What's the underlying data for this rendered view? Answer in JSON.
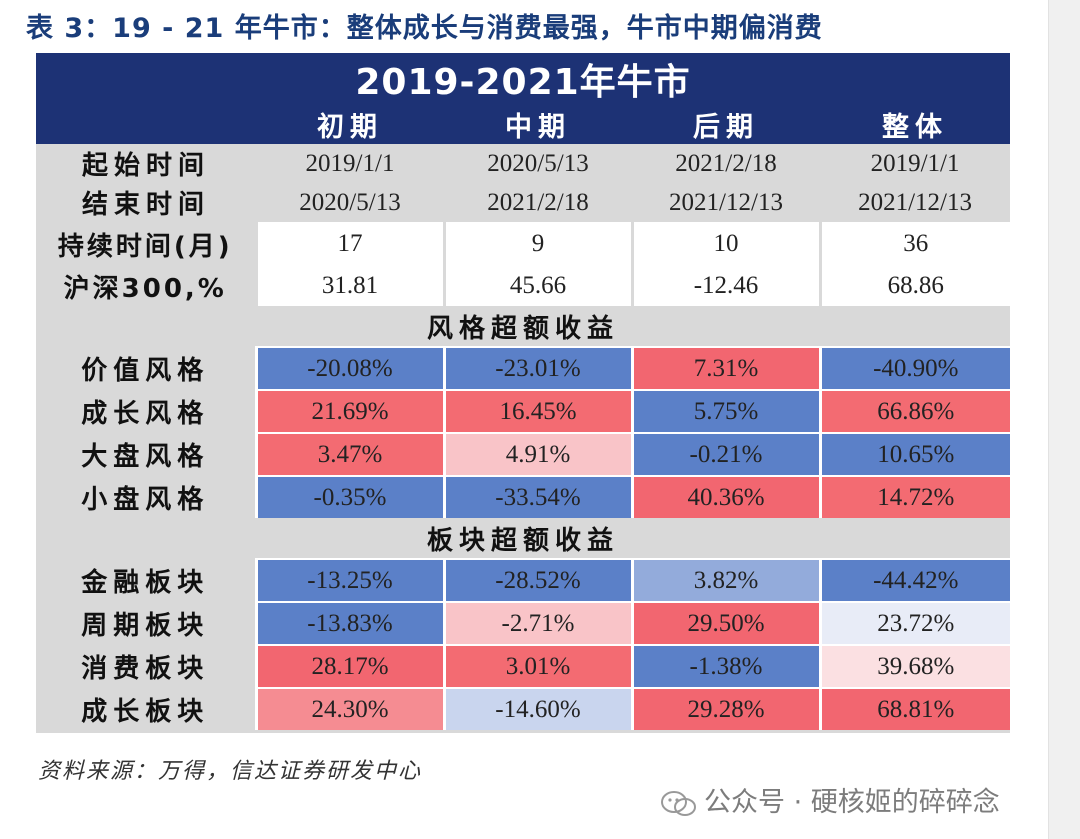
{
  "title": "表 3：19 - 21 年牛市：整体成长与消费最强，牛市中期偏消费",
  "table": {
    "main_header": "2019-2021年牛市",
    "columns": [
      "初期",
      "中期",
      "后期",
      "整体"
    ],
    "period_rows": {
      "start_label": "起始时间",
      "end_label": "结束时间",
      "start": [
        "2019/1/1",
        "2020/5/13",
        "2021/2/18",
        "2019/1/1"
      ],
      "end": [
        "2020/5/13",
        "2021/2/18",
        "2021/12/13",
        "2021/12/13"
      ]
    },
    "duration": {
      "label": "持续时间(月)",
      "values": [
        "17",
        "9",
        "10",
        "36"
      ]
    },
    "csi300": {
      "label": "沪深300,%",
      "values": [
        "31.81",
        "45.66",
        "-12.46",
        "68.86"
      ]
    },
    "sections": [
      {
        "title": "风格超额收益",
        "rows": [
          {
            "label": "价值风格",
            "values": [
              "-20.08%",
              "-23.01%",
              "7.31%",
              "-40.90%"
            ],
            "colors": [
              "#5b80c8",
              "#5b80c8",
              "#f26670",
              "#5b80c8"
            ]
          },
          {
            "label": "成长风格",
            "values": [
              "21.69%",
              "16.45%",
              "5.75%",
              "66.86%"
            ],
            "colors": [
              "#f36b72",
              "#f36b72",
              "#5b80c8",
              "#f36b72"
            ]
          },
          {
            "label": "大盘风格",
            "values": [
              "3.47%",
              "4.91%",
              "-0.21%",
              "10.65%"
            ],
            "colors": [
              "#f36b72",
              "#f9c4c8",
              "#5b80c8",
              "#5b80c8"
            ]
          },
          {
            "label": "小盘风格",
            "values": [
              "-0.35%",
              "-33.54%",
              "40.36%",
              "14.72%"
            ],
            "colors": [
              "#5b80c8",
              "#5b80c8",
              "#f26670",
              "#f36b72"
            ]
          }
        ]
      },
      {
        "title": "板块超额收益",
        "rows": [
          {
            "label": "金融板块",
            "values": [
              "-13.25%",
              "-28.52%",
              "3.82%",
              "-44.42%"
            ],
            "colors": [
              "#5b80c8",
              "#5b80c8",
              "#93abdb",
              "#5b80c8"
            ]
          },
          {
            "label": "周期板块",
            "values": [
              "-13.83%",
              "-2.71%",
              "29.50%",
              "23.72%"
            ],
            "colors": [
              "#5b80c8",
              "#f9c4c8",
              "#f26670",
              "#e8ecf7"
            ]
          },
          {
            "label": "消费板块",
            "values": [
              "28.17%",
              "3.01%",
              "-1.38%",
              "39.68%"
            ],
            "colors": [
              "#f26670",
              "#f36b72",
              "#5b80c8",
              "#fbe0e2"
            ]
          },
          {
            "label": "成长板块",
            "values": [
              "24.30%",
              "-14.60%",
              "29.28%",
              "68.81%"
            ],
            "colors": [
              "#f58c92",
              "#c9d5ee",
              "#f26670",
              "#f26670"
            ]
          }
        ]
      }
    ]
  },
  "source": "资料来源：万得，信达证券研发中心",
  "watermark": "公众号 · 硬核姬的碎碎念"
}
